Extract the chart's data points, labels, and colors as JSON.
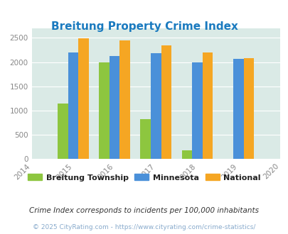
{
  "title": "Breitung Property Crime Index",
  "years": [
    2015,
    2016,
    2017,
    2018,
    2019
  ],
  "breitung": [
    1140,
    1990,
    820,
    175,
    0
  ],
  "minnesota": [
    2200,
    2120,
    2180,
    1995,
    2060
  ],
  "national": [
    2490,
    2440,
    2340,
    2195,
    2085
  ],
  "xlim": [
    2014,
    2020
  ],
  "ylim": [
    0,
    2700
  ],
  "yticks": [
    0,
    500,
    1000,
    1500,
    2000,
    2500
  ],
  "color_breitung": "#8dc63f",
  "color_minnesota": "#4a90d9",
  "color_national": "#f5a623",
  "background_color": "#daeae6",
  "title_color": "#1a7abf",
  "label_breitung": "Breitung Township",
  "label_minnesota": "Minnesota",
  "label_national": "National",
  "footnote1": "Crime Index corresponds to incidents per 100,000 inhabitants",
  "footnote2": "© 2025 CityRating.com - https://www.cityrating.com/crime-statistics/",
  "bar_width": 0.25
}
